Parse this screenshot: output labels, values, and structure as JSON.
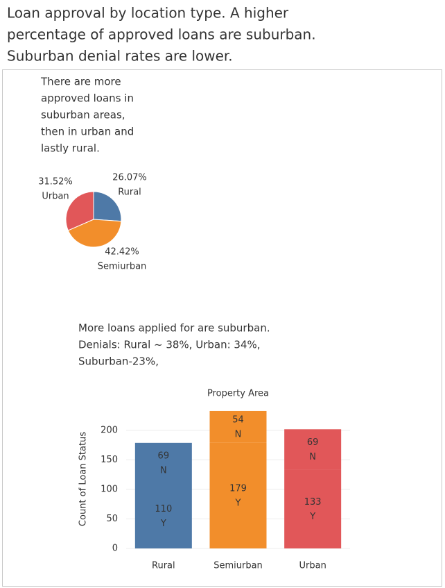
{
  "title_lines": [
    "Loan approval by location type. A higher",
    "percentage of approved loans are suburban.",
    "Suburban denial rates are lower."
  ],
  "chart_data": [
    {
      "type": "pie",
      "annotation_lines": [
        "There are more",
        "approved loans in",
        "suburban areas,",
        "then in urban and",
        "lastly rural."
      ],
      "categories": [
        "Rural",
        "Semiurban",
        "Urban"
      ],
      "values": [
        26.07,
        42.42,
        31.52
      ],
      "value_labels": [
        "26.07%",
        "42.42%",
        "31.52%"
      ],
      "colors": [
        "#4e79a7",
        "#f28e2b",
        "#e15759"
      ]
    },
    {
      "type": "stacked-bar",
      "annotation_lines": [
        "More loans applied for are suburban.",
        "Denials: Rural ~ 38%,  Urban: 34%,",
        "Suburban-23%,"
      ],
      "title": "Property Area",
      "y_label": "Count of Loan Status",
      "categories": [
        "Rural",
        "Semiurban",
        "Urban"
      ],
      "colors": [
        "#4e79a7",
        "#f28e2b",
        "#e15759"
      ],
      "label_colors": [
        "#ffffff",
        "#333333",
        "#ffffff"
      ],
      "series": [
        {
          "name": "Y",
          "values": [
            110,
            179,
            133
          ]
        },
        {
          "name": "N",
          "values": [
            69,
            54,
            69
          ]
        }
      ],
      "ylim": [
        0,
        240
      ],
      "yticks": [
        0,
        50,
        100,
        150,
        200
      ],
      "grid": true
    }
  ]
}
